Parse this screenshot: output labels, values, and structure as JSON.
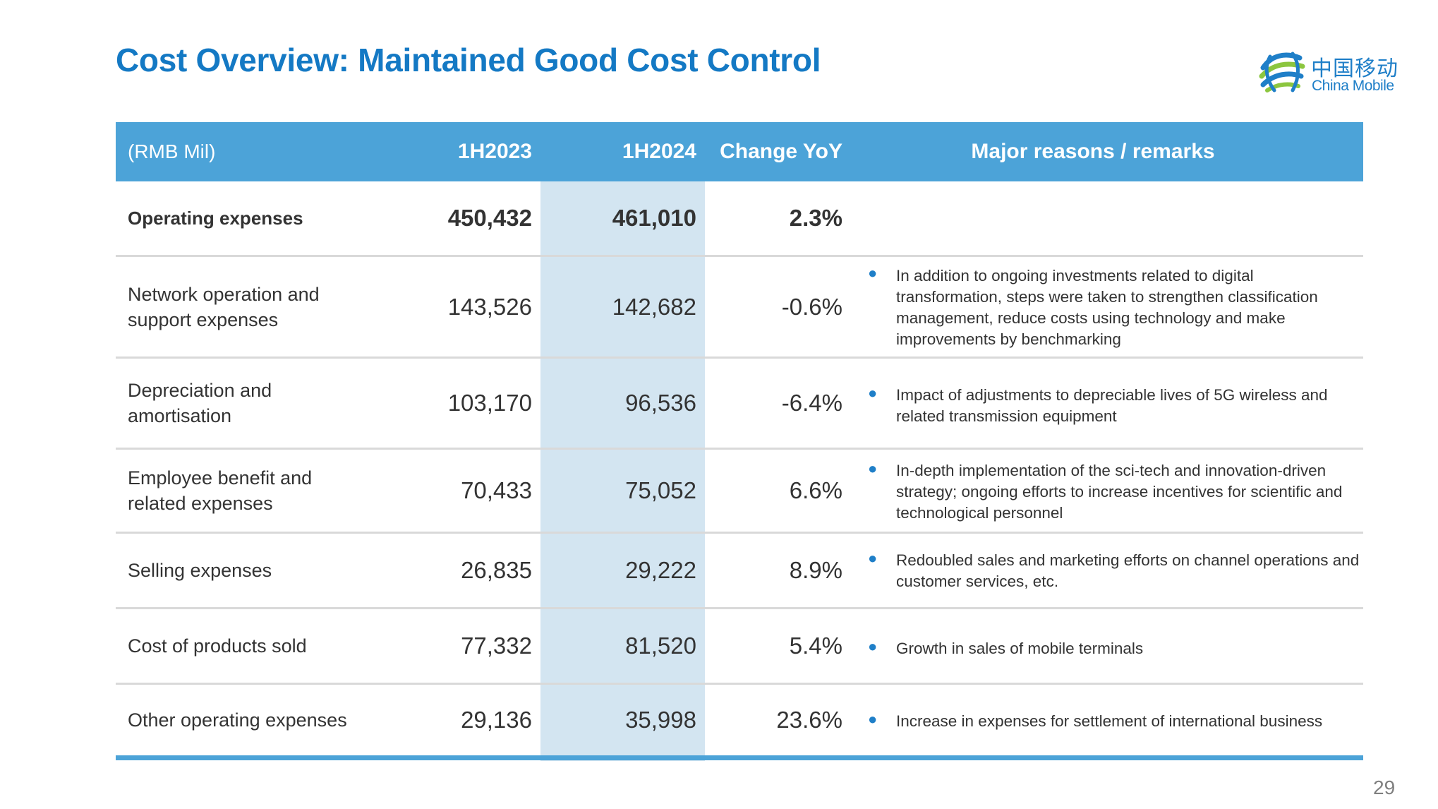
{
  "title": "Cost Overview: Maintained Good Cost Control",
  "logo": {
    "cn": "中国移动",
    "en": "China Mobile",
    "brand_color": "#1f7fc8",
    "icon": "china-mobile-logo-icon"
  },
  "colors": {
    "title": "#1479c4",
    "header_bg": "#4ca3d8",
    "highlight_col": "#d3e5f1",
    "bullet": "#1f7fc8"
  },
  "table": {
    "header": {
      "unit": "(RMB Mil)",
      "col1": "1H2023",
      "col2": "1H2024",
      "col3": "Change YoY",
      "col4": "Major reasons / remarks"
    },
    "rows": [
      {
        "label": "Operating expenses",
        "v1": "450,432",
        "v2": "461,010",
        "chg": "2.3%",
        "remark": ""
      },
      {
        "label": "Network operation and\nsupport expenses",
        "v1": "143,526",
        "v2": "142,682",
        "chg": "-0.6%",
        "remark": "In addition to ongoing investments related to digital transformation, steps were taken to strengthen classification management, reduce costs using technology and make improvements by benchmarking"
      },
      {
        "label": "Depreciation and\namortisation",
        "v1": "103,170",
        "v2": "96,536",
        "chg": "-6.4%",
        "remark": "Impact of adjustments to depreciable lives of 5G wireless and related transmission equipment"
      },
      {
        "label": "Employee benefit and\nrelated expenses",
        "v1": "70,433",
        "v2": "75,052",
        "chg": "6.6%",
        "remark": "In-depth implementation of the sci-tech and innovation-driven strategy; ongoing efforts to increase incentives for scientific and technological personnel"
      },
      {
        "label": "Selling expenses",
        "v1": "26,835",
        "v2": "29,222",
        "chg": "8.9%",
        "remark": "Redoubled sales and marketing efforts on channel operations and customer services, etc."
      },
      {
        "label": "Cost of products sold",
        "v1": "77,332",
        "v2": "81,520",
        "chg": "5.4%",
        "remark": "Growth in sales of mobile terminals"
      },
      {
        "label": "Other operating expenses",
        "v1": "29,136",
        "v2": "35,998",
        "chg": "23.6%",
        "remark": "Increase in expenses for settlement of international business"
      }
    ]
  },
  "page_number": "29"
}
